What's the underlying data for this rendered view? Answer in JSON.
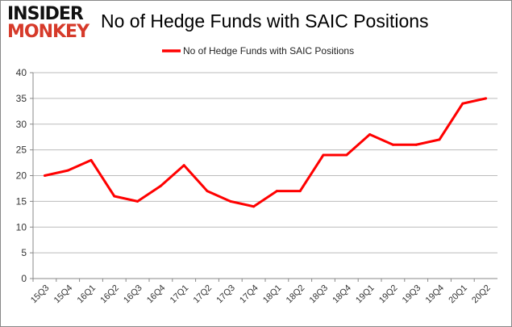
{
  "logo": {
    "line1": "INSIDER",
    "line2": "MONKEY"
  },
  "chart_data": {
    "type": "line",
    "title": "No of Hedge Funds with SAIC Positions",
    "xlabel": "",
    "ylabel": "",
    "categories": [
      "15Q3",
      "15Q4",
      "16Q1",
      "16Q2",
      "16Q3",
      "16Q4",
      "17Q1",
      "17Q2",
      "17Q3",
      "17Q4",
      "18Q1",
      "18Q2",
      "18Q3",
      "18Q4",
      "19Q1",
      "19Q2",
      "19Q3",
      "19Q4",
      "20Q1",
      "20Q2"
    ],
    "series": [
      {
        "name": "No of Hedge Funds with SAIC Positions",
        "color": "#ff0000",
        "values": [
          20,
          21,
          23,
          16,
          15,
          18,
          22,
          17,
          15,
          14,
          17,
          17,
          24,
          24,
          28,
          26,
          26,
          27,
          34,
          35
        ]
      }
    ],
    "ylim": [
      0,
      40
    ],
    "yticks": [
      0,
      5,
      10,
      15,
      20,
      25,
      30,
      35,
      40
    ],
    "grid": true,
    "legend": "top"
  }
}
